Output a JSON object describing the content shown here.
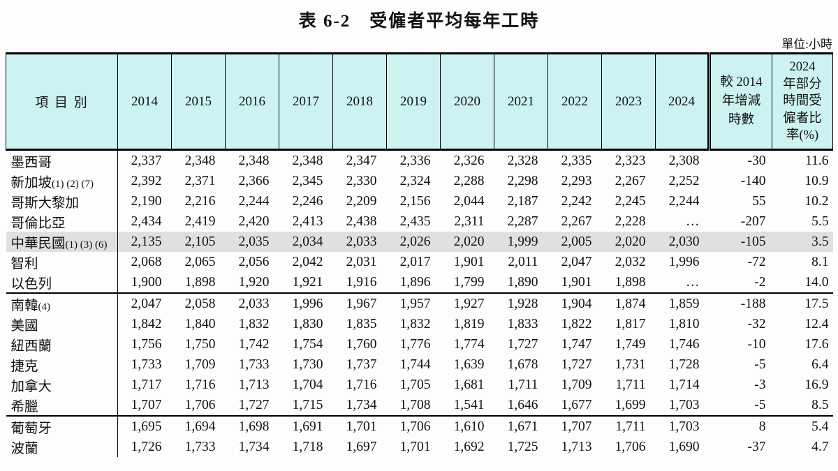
{
  "title": "表 6-2　受僱者平均每年工時",
  "unit_label": "單位:小時",
  "table": {
    "item_header": "項 目 別",
    "years": [
      "2014",
      "2015",
      "2016",
      "2017",
      "2018",
      "2019",
      "2020",
      "2021",
      "2022",
      "2023",
      "2024"
    ],
    "change_header": "較 2014\n年增減\n時數",
    "ratio_header": "2024\n年部分\n時間受\n僱者比\n率(%)",
    "rows": [
      {
        "name": "墨西哥",
        "note": "",
        "values": [
          "2,337",
          "2,348",
          "2,348",
          "2,348",
          "2,347",
          "2,336",
          "2,326",
          "2,328",
          "2,335",
          "2,323",
          "2,308"
        ],
        "change": "-30",
        "ratio": "11.6",
        "highlight": false,
        "sep_after": false
      },
      {
        "name": "新加坡",
        "note": "(1) (2) (7)",
        "values": [
          "2,392",
          "2,371",
          "2,366",
          "2,345",
          "2,330",
          "2,324",
          "2,288",
          "2,298",
          "2,293",
          "2,267",
          "2,252"
        ],
        "change": "-140",
        "ratio": "10.9",
        "highlight": false,
        "sep_after": false
      },
      {
        "name": "哥斯大黎加",
        "note": "",
        "values": [
          "2,190",
          "2,216",
          "2,244",
          "2,246",
          "2,209",
          "2,156",
          "2,044",
          "2,187",
          "2,242",
          "2,245",
          "2,244"
        ],
        "change": "55",
        "ratio": "10.2",
        "highlight": false,
        "sep_after": false
      },
      {
        "name": "哥倫比亞",
        "note": "",
        "values": [
          "2,434",
          "2,419",
          "2,420",
          "2,413",
          "2,438",
          "2,435",
          "2,311",
          "2,287",
          "2,267",
          "2,228",
          "…"
        ],
        "change": "-207",
        "ratio": "5.5",
        "highlight": false,
        "sep_after": false
      },
      {
        "name": "中華民國",
        "note": "(1) (3) (6)",
        "values": [
          "2,135",
          "2,105",
          "2,035",
          "2,034",
          "2,033",
          "2,026",
          "2,020",
          "1,999",
          "2,005",
          "2,020",
          "2,030"
        ],
        "change": "-105",
        "ratio": "3.5",
        "highlight": true,
        "sep_after": false
      },
      {
        "name": "智利",
        "note": "",
        "values": [
          "2,068",
          "2,065",
          "2,056",
          "2,042",
          "2,031",
          "2,017",
          "1,901",
          "2,011",
          "2,047",
          "2,032",
          "1,996"
        ],
        "change": "-72",
        "ratio": "8.1",
        "highlight": false,
        "sep_after": false
      },
      {
        "name": "以色列",
        "note": "",
        "values": [
          "1,900",
          "1,898",
          "1,920",
          "1,921",
          "1,916",
          "1,896",
          "1,799",
          "1,890",
          "1,901",
          "1,898",
          "…"
        ],
        "change": "-2",
        "ratio": "14.0",
        "highlight": false,
        "sep_after": true
      },
      {
        "name": "南韓",
        "note": "(4)",
        "values": [
          "2,047",
          "2,058",
          "2,033",
          "1,996",
          "1,967",
          "1,957",
          "1,927",
          "1,928",
          "1,904",
          "1,874",
          "1,859"
        ],
        "change": "-188",
        "ratio": "17.5",
        "highlight": false,
        "sep_after": false
      },
      {
        "name": "美國",
        "note": "",
        "values": [
          "1,842",
          "1,840",
          "1,832",
          "1,830",
          "1,835",
          "1,832",
          "1,819",
          "1,833",
          "1,822",
          "1,817",
          "1,810"
        ],
        "change": "-32",
        "ratio": "12.4",
        "highlight": false,
        "sep_after": false
      },
      {
        "name": "紐西蘭",
        "note": "",
        "values": [
          "1,756",
          "1,750",
          "1,742",
          "1,754",
          "1,760",
          "1,776",
          "1,774",
          "1,727",
          "1,747",
          "1,749",
          "1,746"
        ],
        "change": "-10",
        "ratio": "17.6",
        "highlight": false,
        "sep_after": false
      },
      {
        "name": "捷克",
        "note": "",
        "values": [
          "1,733",
          "1,709",
          "1,733",
          "1,730",
          "1,737",
          "1,744",
          "1,639",
          "1,678",
          "1,727",
          "1,731",
          "1,728"
        ],
        "change": "-5",
        "ratio": "6.4",
        "highlight": false,
        "sep_after": false
      },
      {
        "name": "加拿大",
        "note": "",
        "values": [
          "1,717",
          "1,716",
          "1,713",
          "1,704",
          "1,716",
          "1,705",
          "1,681",
          "1,711",
          "1,709",
          "1,711",
          "1,714"
        ],
        "change": "-3",
        "ratio": "16.9",
        "highlight": false,
        "sep_after": false
      },
      {
        "name": "希臘",
        "note": "",
        "values": [
          "1,707",
          "1,706",
          "1,727",
          "1,715",
          "1,734",
          "1,708",
          "1,541",
          "1,646",
          "1,677",
          "1,699",
          "1,703"
        ],
        "change": "-5",
        "ratio": "8.5",
        "highlight": false,
        "sep_after": true
      },
      {
        "name": "葡萄牙",
        "note": "",
        "values": [
          "1,695",
          "1,694",
          "1,698",
          "1,691",
          "1,701",
          "1,706",
          "1,610",
          "1,671",
          "1,707",
          "1,711",
          "1,703"
        ],
        "change": "8",
        "ratio": "5.4",
        "highlight": false,
        "sep_after": false
      },
      {
        "name": "波蘭",
        "note": "",
        "values": [
          "1,726",
          "1,733",
          "1,734",
          "1,718",
          "1,697",
          "1,701",
          "1,692",
          "1,725",
          "1,713",
          "1,706",
          "1,690"
        ],
        "change": "-37",
        "ratio": "4.7",
        "highlight": false,
        "sep_after": false
      }
    ]
  }
}
